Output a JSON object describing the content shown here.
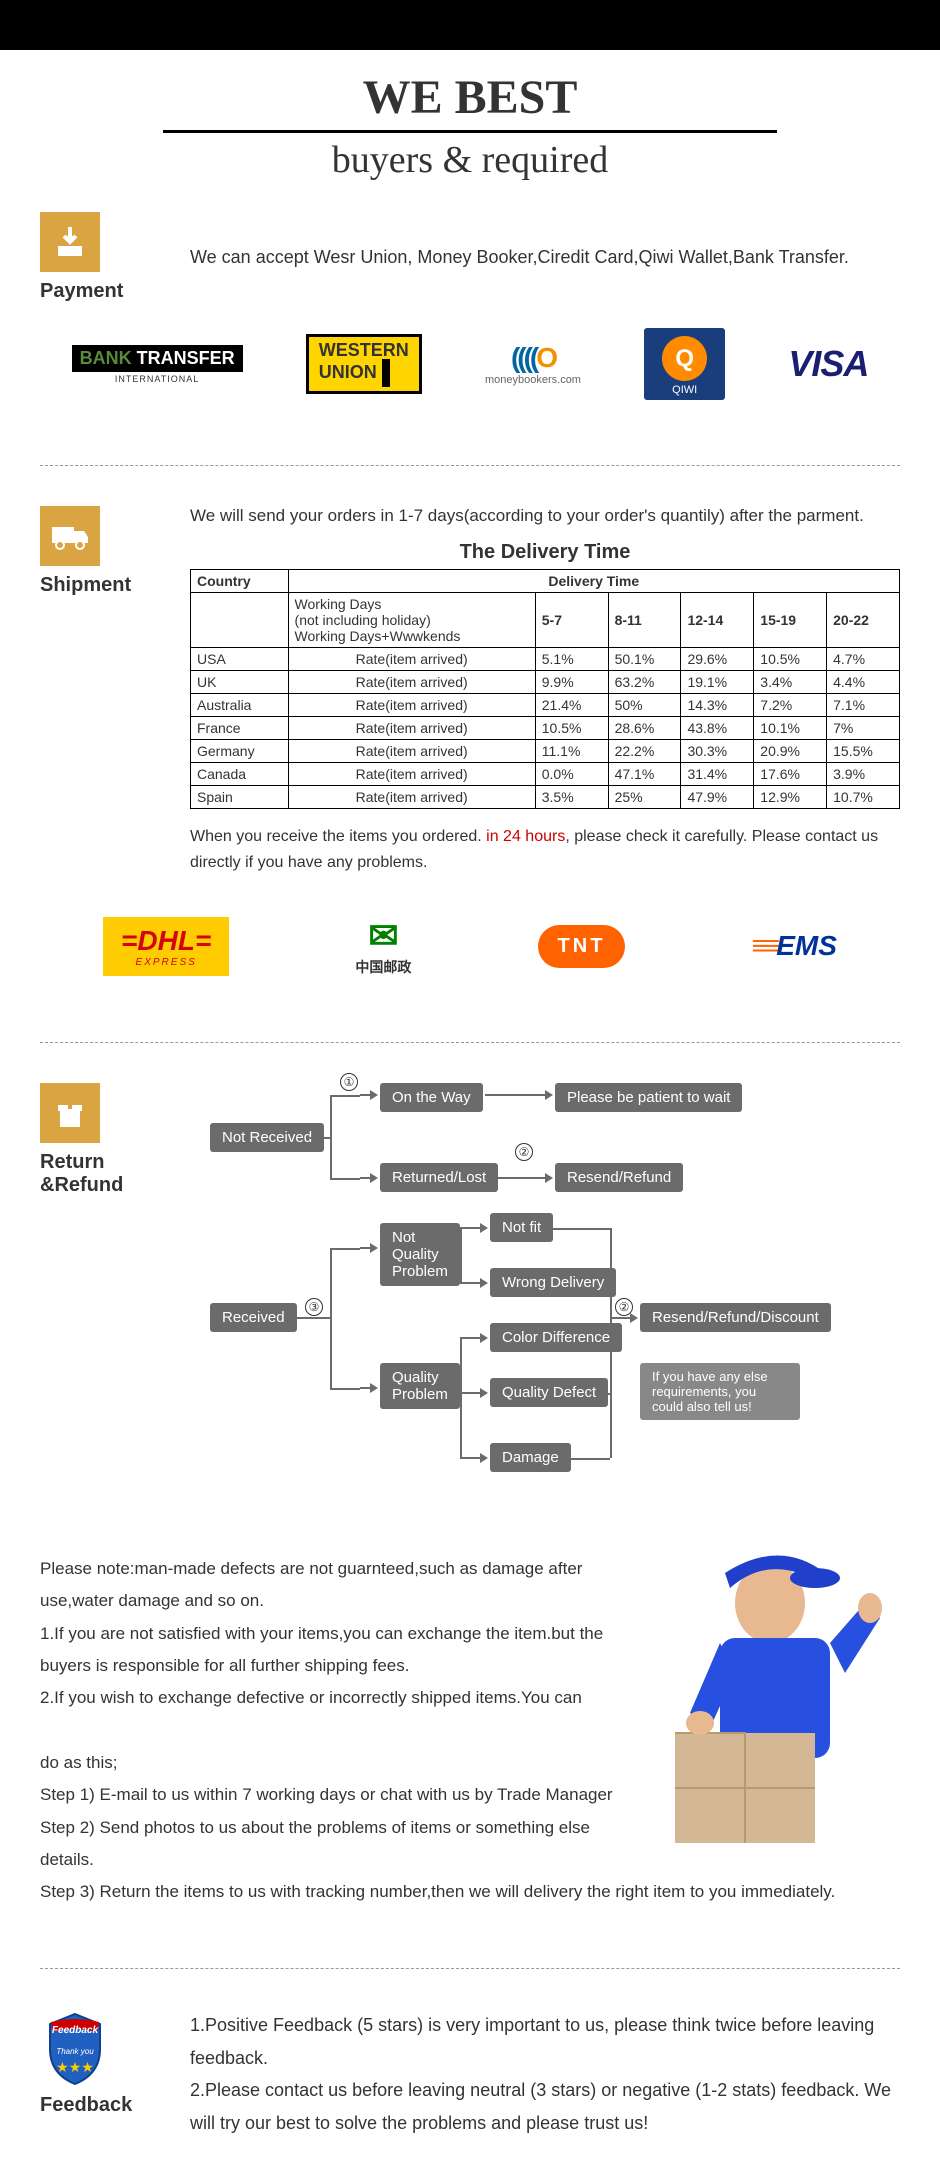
{
  "header": {
    "title": "WE BEST",
    "subtitle": "buyers & required"
  },
  "payment": {
    "label": "Payment",
    "text": "We can accept Wesr Union, Money Booker,Ciredit Card,Qiwi Wallet,Bank Transfer.",
    "logos": {
      "bank_transfer": {
        "bank": "BANK",
        "transfer": "TRANSFER",
        "sub": "INTERNATIONAL"
      },
      "wu": {
        "line1": "WESTERN",
        "line2": "UNION"
      },
      "mb": "moneybookers.com",
      "qiwi": "QIWI",
      "visa": "VISA"
    }
  },
  "shipment": {
    "label": "Shipment",
    "intro": "We will send your orders in 1-7 days(according to your order's quantily) after the parment.",
    "table_title": "The Delivery Time",
    "headers": {
      "country": "Country",
      "delivery_time": "Delivery Time",
      "working_days": "Working Days\n(not including holiday)\nWorking Days+Wwwkends",
      "cols": [
        "5-7",
        "8-11",
        "12-14",
        "15-19",
        "20-22"
      ]
    },
    "rate_label": "Rate(item arrived)",
    "rows": [
      {
        "country": "USA",
        "vals": [
          "5.1%",
          "50.1%",
          "29.6%",
          "10.5%",
          "4.7%"
        ]
      },
      {
        "country": "UK",
        "vals": [
          "9.9%",
          "63.2%",
          "19.1%",
          "3.4%",
          "4.4%"
        ]
      },
      {
        "country": "Australia",
        "vals": [
          "21.4%",
          "50%",
          "14.3%",
          "7.2%",
          "7.1%"
        ]
      },
      {
        "country": "France",
        "vals": [
          "10.5%",
          "28.6%",
          "43.8%",
          "10.1%",
          "7%"
        ]
      },
      {
        "country": "Germany",
        "vals": [
          "11.1%",
          "22.2%",
          "30.3%",
          "20.9%",
          "15.5%"
        ]
      },
      {
        "country": "Canada",
        "vals": [
          "0.0%",
          "47.1%",
          "31.4%",
          "17.6%",
          "3.9%"
        ]
      },
      {
        "country": "Spain",
        "vals": [
          "3.5%",
          "25%",
          "47.9%",
          "12.9%",
          "10.7%"
        ]
      }
    ],
    "note_pre": "When you receive the items you ordered. ",
    "note_red": "in 24 hours",
    "note_post": ", please check it carefully. Please contact us directly if you have any problems.",
    "carriers": {
      "dhl": "DHL",
      "dhl_sub": "EXPRESS",
      "cp": "中国邮政",
      "tnt": "TNT",
      "ems": "EMS"
    }
  },
  "refund": {
    "label": "Return &Refund",
    "flow": {
      "not_received": "Not Received",
      "on_way": "On the Way",
      "patient": "Please be patient to wait",
      "returned": "Returned/Lost",
      "resend": "Resend/Refund",
      "received": "Received",
      "nqp": "Not\nQuality\nProblem",
      "not_fit": "Not fit",
      "wrong": "Wrong Delivery",
      "qp": "Quality\nProblem",
      "color": "Color Difference",
      "defect": "Quality Defect",
      "damage": "Damage",
      "resend2": "Resend/Refund/Discount",
      "info": "If you have any else requirements, you could also tell us!"
    },
    "policy": "Please note:man-made defects are not guarnteed,such as damage after use,water damage and so on.\n1.If you are not satisfied with your items,you can exchange the item.but the buyers is responsible for all further shipping fees.\n2.If you wish to exchange defective or incorrectly shipped items.You can\n\ndo as this;\nStep 1) E-mail to us within 7 working days or chat with us by Trade  Manager\nStep 2) Send photos to us about the problems of items or something else details.\nStep 3) Return the items to us with tracking number,then we will delivery the right item to you immediately."
  },
  "feedback": {
    "label": "Feedback",
    "text": "1.Positive Feedback (5 stars) is very important to us, please think twice before leaving feedback.\n2.Please contact us before leaving neutral (3 stars) or negative (1-2 stats) feedback. We will try our best to solve the problems and please trust us!"
  }
}
